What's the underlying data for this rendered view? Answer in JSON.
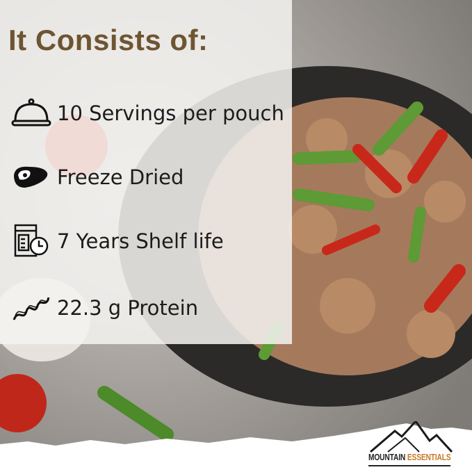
{
  "title": "It Consists of:",
  "features": [
    {
      "icon": "cloche-icon",
      "label": "10 Servings per pouch"
    },
    {
      "icon": "steak-icon",
      "label": "Freeze Dried"
    },
    {
      "icon": "calendar-clock-icon",
      "label": "7 Years Shelf life"
    },
    {
      "icon": "protein-helix-icon",
      "label": "22.3 g Protein"
    }
  ],
  "logo": {
    "word1": "MOUNTAIN",
    "word2": "ESSENTIALS"
  },
  "colors": {
    "title": "#6e5532",
    "logo_accent": "#c77a2a"
  }
}
